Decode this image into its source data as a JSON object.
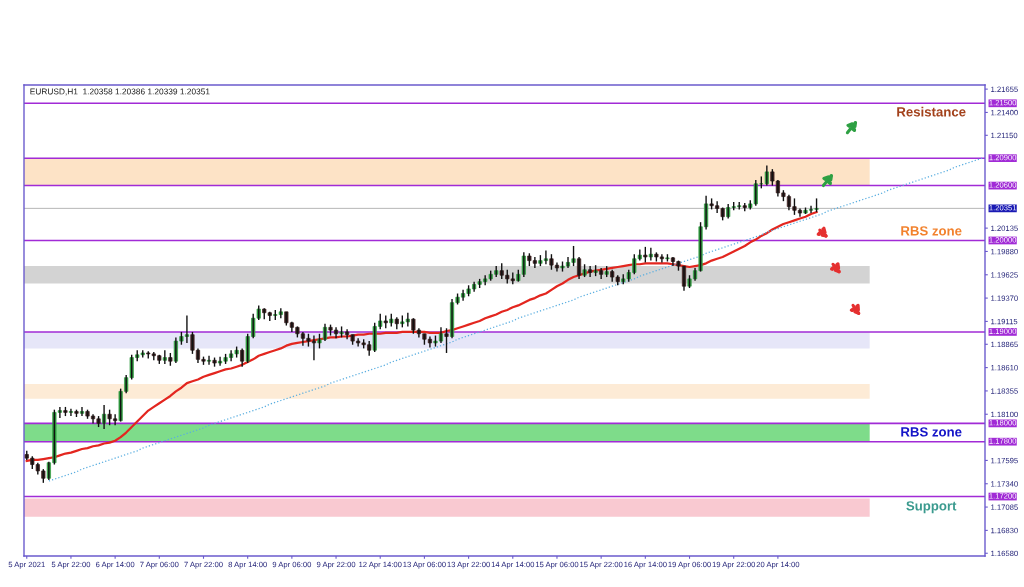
{
  "chart_data": {
    "type": "candlestick",
    "title": "EURUSD,H1  1.20358 1.20386 1.20339 1.20351",
    "categories": [
      "5 Apr 2021",
      null,
      null,
      null,
      null,
      null,
      null,
      null,
      "5 Apr 22:00",
      null,
      null,
      null,
      null,
      null,
      null,
      null,
      "6 Apr 14:00",
      null,
      null,
      null,
      null,
      null,
      null,
      null,
      "7 Apr 06:00",
      null,
      null,
      null,
      null,
      null,
      null,
      null,
      "7 Apr 22:00",
      null,
      null,
      null,
      null,
      null,
      null,
      null,
      "8 Apr 14:00",
      null,
      null,
      null,
      null,
      null,
      null,
      null,
      "9 Apr 06:00",
      null,
      null,
      null,
      null,
      null,
      null,
      null,
      "9 Apr 22:00",
      null,
      null,
      null,
      null,
      null,
      null,
      null,
      "12 Apr 14:00",
      null,
      null,
      null,
      null,
      null,
      null,
      null,
      "13 Apr 06:00",
      null,
      null,
      null,
      null,
      null,
      null,
      null,
      "13 Apr 22:00",
      null,
      null,
      null,
      null,
      null,
      null,
      null,
      "14 Apr 14:00",
      null,
      null,
      null,
      null,
      null,
      null,
      null,
      "15 Apr 06:00",
      null,
      null,
      null,
      null,
      null,
      null,
      null,
      "15 Apr 22:00",
      null,
      null,
      null,
      null,
      null,
      null,
      null,
      "16 Apr 14:00",
      null,
      null,
      null,
      null,
      null,
      null,
      null,
      "19 Apr 06:00",
      null,
      null,
      null,
      null,
      null,
      null,
      null,
      "19 Apr 22:00",
      null,
      null,
      null,
      null,
      null,
      null,
      null,
      "20 Apr 14:00",
      null,
      null,
      null,
      null,
      null,
      null,
      null,
      null,
      null,
      null,
      null,
      null,
      null,
      null,
      null,
      null,
      null,
      null,
      null,
      null,
      null,
      null,
      null,
      null,
      null,
      null,
      null,
      null,
      null,
      null,
      null,
      null,
      null,
      null,
      null,
      null,
      null
    ],
    "ohlc": [
      [
        1.1766,
        1.177,
        1.176,
        1.1762
      ],
      [
        1.1762,
        1.1764,
        1.175,
        1.1755
      ],
      [
        1.1755,
        1.1757,
        1.1744,
        1.1748
      ],
      [
        1.1748,
        1.175,
        1.1735,
        1.174
      ],
      [
        1.174,
        1.1758,
        1.1738,
        1.1757
      ],
      [
        1.1757,
        1.1815,
        1.1755,
        1.1812
      ],
      [
        1.1812,
        1.1818,
        1.1806,
        1.1814
      ],
      [
        1.1814,
        1.1818,
        1.1808,
        1.1812
      ],
      [
        1.1812,
        1.1816,
        1.1808,
        1.1813
      ],
      [
        1.1813,
        1.1815,
        1.1807,
        1.1811
      ],
      [
        1.1811,
        1.1818,
        1.1808,
        1.1813
      ],
      [
        1.1813,
        1.1815,
        1.1805,
        1.1808
      ],
      [
        1.1808,
        1.181,
        1.18,
        1.1805
      ],
      [
        1.1805,
        1.1808,
        1.1796,
        1.18
      ],
      [
        1.18,
        1.182,
        1.1794,
        1.181
      ],
      [
        1.181,
        1.1815,
        1.1798,
        1.1805
      ],
      [
        1.1805,
        1.181,
        1.1798,
        1.1803
      ],
      [
        1.1803,
        1.1838,
        1.1802,
        1.1835
      ],
      [
        1.1835,
        1.1853,
        1.1833,
        1.185
      ],
      [
        1.185,
        1.1875,
        1.1848,
        1.1872
      ],
      [
        1.1872,
        1.188,
        1.1868,
        1.1875
      ],
      [
        1.1875,
        1.188,
        1.1872,
        1.1877
      ],
      [
        1.1877,
        1.1879,
        1.1871,
        1.1876
      ],
      [
        1.1876,
        1.1878,
        1.1869,
        1.1874
      ],
      [
        1.1874,
        1.1875,
        1.1865,
        1.1869
      ],
      [
        1.1869,
        1.188,
        1.1865,
        1.1872
      ],
      [
        1.1872,
        1.1877,
        1.1863,
        1.1868
      ],
      [
        1.1868,
        1.1894,
        1.1866,
        1.189
      ],
      [
        1.189,
        1.19,
        1.1886,
        1.1895
      ],
      [
        1.1895,
        1.1918,
        1.1888,
        1.1897
      ],
      [
        1.1897,
        1.19,
        1.1876,
        1.188
      ],
      [
        1.188,
        1.1882,
        1.1866,
        1.187
      ],
      [
        1.187,
        1.1873,
        1.1864,
        1.1868
      ],
      [
        1.1868,
        1.1874,
        1.1864,
        1.1869
      ],
      [
        1.1869,
        1.1872,
        1.1862,
        1.1866
      ],
      [
        1.1866,
        1.1873,
        1.1863,
        1.1868
      ],
      [
        1.1868,
        1.1876,
        1.1865,
        1.1872
      ],
      [
        1.1872,
        1.188,
        1.1868,
        1.1876
      ],
      [
        1.1876,
        1.1884,
        1.1872,
        1.188
      ],
      [
        1.188,
        1.1882,
        1.1862,
        1.1868
      ],
      [
        1.1868,
        1.1898,
        1.1866,
        1.1895
      ],
      [
        1.1895,
        1.192,
        1.1893,
        1.1915
      ],
      [
        1.1915,
        1.1929,
        1.1913,
        1.1925
      ],
      [
        1.1925,
        1.1926,
        1.1914,
        1.1921
      ],
      [
        1.1921,
        1.1922,
        1.1912,
        1.1918
      ],
      [
        1.1918,
        1.1924,
        1.1913,
        1.1919
      ],
      [
        1.1919,
        1.1926,
        1.1915,
        1.1922
      ],
      [
        1.1922,
        1.1922,
        1.1907,
        1.191
      ],
      [
        1.191,
        1.1911,
        1.19,
        1.1905
      ],
      [
        1.1905,
        1.1906,
        1.1894,
        1.1898
      ],
      [
        1.1898,
        1.19,
        1.1885,
        1.1893
      ],
      [
        1.1893,
        1.1898,
        1.1884,
        1.189
      ],
      [
        1.189,
        1.1896,
        1.1869,
        1.1888
      ],
      [
        1.1888,
        1.1898,
        1.1882,
        1.1892
      ],
      [
        1.1892,
        1.1909,
        1.189,
        1.1905
      ],
      [
        1.1905,
        1.1908,
        1.1896,
        1.1902
      ],
      [
        1.1902,
        1.1905,
        1.1893,
        1.1898
      ],
      [
        1.1898,
        1.1906,
        1.1894,
        1.19
      ],
      [
        1.19,
        1.1903,
        1.1892,
        1.1897
      ],
      [
        1.1897,
        1.1897,
        1.1886,
        1.189
      ],
      [
        1.189,
        1.1893,
        1.1884,
        1.1888
      ],
      [
        1.1888,
        1.1892,
        1.1882,
        1.1886
      ],
      [
        1.1886,
        1.189,
        1.1874,
        1.188
      ],
      [
        1.188,
        1.191,
        1.1878,
        1.1906
      ],
      [
        1.1906,
        1.192,
        1.1903,
        1.1912
      ],
      [
        1.1912,
        1.1918,
        1.1904,
        1.191
      ],
      [
        1.191,
        1.192,
        1.1906,
        1.1914
      ],
      [
        1.1914,
        1.1916,
        1.1903,
        1.1909
      ],
      [
        1.1909,
        1.1918,
        1.1905,
        1.1911
      ],
      [
        1.1911,
        1.1921,
        1.1906,
        1.1914
      ],
      [
        1.1914,
        1.1915,
        1.1898,
        1.1902
      ],
      [
        1.1902,
        1.1904,
        1.1894,
        1.1898
      ],
      [
        1.1898,
        1.1898,
        1.1886,
        1.1892
      ],
      [
        1.1892,
        1.1895,
        1.1883,
        1.1888
      ],
      [
        1.1888,
        1.1896,
        1.1884,
        1.189
      ],
      [
        1.189,
        1.1905,
        1.1888,
        1.1898
      ],
      [
        1.1898,
        1.1904,
        1.1877,
        1.1895
      ],
      [
        1.1895,
        1.1936,
        1.1893,
        1.1932
      ],
      [
        1.1932,
        1.1942,
        1.193,
        1.1938
      ],
      [
        1.1938,
        1.1946,
        1.1934,
        1.1942
      ],
      [
        1.1942,
        1.1951,
        1.1939,
        1.1947
      ],
      [
        1.1947,
        1.1955,
        1.1944,
        1.1952
      ],
      [
        1.1952,
        1.1958,
        1.1948,
        1.1955
      ],
      [
        1.1955,
        1.1962,
        1.1951,
        1.1958
      ],
      [
        1.1958,
        1.1967,
        1.1956,
        1.1963
      ],
      [
        1.1963,
        1.1972,
        1.196,
        1.1967
      ],
      [
        1.1967,
        1.1975,
        1.1958,
        1.1962
      ],
      [
        1.1962,
        1.1968,
        1.1953,
        1.1958
      ],
      [
        1.1958,
        1.1965,
        1.1952,
        1.1956
      ],
      [
        1.1956,
        1.1968,
        1.1955,
        1.1963
      ],
      [
        1.1963,
        1.1987,
        1.196,
        1.1983
      ],
      [
        1.1983,
        1.1986,
        1.1972,
        1.1978
      ],
      [
        1.1978,
        1.1982,
        1.197,
        1.1975
      ],
      [
        1.1975,
        1.1984,
        1.1972,
        1.1978
      ],
      [
        1.1978,
        1.1989,
        1.1974,
        1.198
      ],
      [
        1.198,
        1.1985,
        1.1968,
        1.1973
      ],
      [
        1.1973,
        1.1976,
        1.1966,
        1.197
      ],
      [
        1.197,
        1.1977,
        1.1966,
        1.1972
      ],
      [
        1.1972,
        1.1982,
        1.197,
        1.1976
      ],
      [
        1.1976,
        1.1994,
        1.1972,
        1.198
      ],
      [
        1.198,
        1.1982,
        1.1958,
        1.1962
      ],
      [
        1.1962,
        1.1974,
        1.196,
        1.1968
      ],
      [
        1.1968,
        1.1972,
        1.196,
        1.1965
      ],
      [
        1.1965,
        1.1973,
        1.1961,
        1.1967
      ],
      [
        1.1967,
        1.197,
        1.1958,
        1.1963
      ],
      [
        1.1963,
        1.1972,
        1.196,
        1.1966
      ],
      [
        1.1966,
        1.1968,
        1.1955,
        1.196
      ],
      [
        1.196,
        1.1962,
        1.1951,
        1.1955
      ],
      [
        1.1955,
        1.1963,
        1.1952,
        1.1958
      ],
      [
        1.1958,
        1.1968,
        1.1955,
        1.1965
      ],
      [
        1.1965,
        1.1985,
        1.1963,
        1.198
      ],
      [
        1.198,
        1.199,
        1.1978,
        1.1984
      ],
      [
        1.1984,
        1.1993,
        1.1976,
        1.1982
      ],
      [
        1.1982,
        1.1992,
        1.1978,
        1.1985
      ],
      [
        1.1985,
        1.1987,
        1.1977,
        1.1982
      ],
      [
        1.1982,
        1.1985,
        1.1976,
        1.198
      ],
      [
        1.198,
        1.1985,
        1.1977,
        1.1981
      ],
      [
        1.1981,
        1.1982,
        1.1972,
        1.1977
      ],
      [
        1.1977,
        1.1978,
        1.1967,
        1.1972
      ],
      [
        1.1972,
        1.1972,
        1.1945,
        1.195
      ],
      [
        1.195,
        1.1962,
        1.1948,
        1.1958
      ],
      [
        1.1958,
        1.197,
        1.1956,
        1.1967
      ],
      [
        1.1967,
        1.202,
        1.1966,
        1.2015
      ],
      [
        1.2015,
        1.2049,
        1.2012,
        1.204
      ],
      [
        1.204,
        1.2046,
        1.2034,
        1.2038
      ],
      [
        1.2038,
        1.2043,
        1.203,
        1.2035
      ],
      [
        1.2035,
        1.2036,
        1.2022,
        1.2026
      ],
      [
        1.2026,
        1.204,
        1.2024,
        1.2036
      ],
      [
        1.2036,
        1.2042,
        1.2033,
        1.2037
      ],
      [
        1.2037,
        1.2042,
        1.2034,
        1.2038
      ],
      [
        1.2038,
        1.2041,
        1.2032,
        1.2036
      ],
      [
        1.2036,
        1.2044,
        1.2034,
        1.204
      ],
      [
        1.204,
        1.2066,
        1.2038,
        1.2062
      ],
      [
        1.2062,
        1.207,
        1.2057,
        1.2062
      ],
      [
        1.2062,
        1.2082,
        1.206,
        1.2075
      ],
      [
        1.2075,
        1.2078,
        1.206,
        1.2065
      ],
      [
        1.2065,
        1.2066,
        1.2048,
        1.2052
      ],
      [
        1.2052,
        1.2055,
        1.2043,
        1.2048
      ],
      [
        1.2048,
        1.205,
        1.2033,
        1.2037
      ],
      [
        1.2037,
        1.2046,
        1.2028,
        1.2033
      ],
      [
        1.2033,
        1.2035,
        1.2026,
        1.203
      ],
      [
        1.203,
        1.2036,
        1.2029,
        1.2033
      ],
      [
        1.2033,
        1.2038,
        1.203,
        1.2034
      ],
      [
        1.2034,
        1.2046,
        1.2031,
        1.2035
      ],
      null,
      null,
      null,
      null,
      null,
      null,
      null,
      null,
      null,
      null,
      null,
      null,
      null,
      null,
      null,
      null,
      null,
      null,
      null,
      null,
      null,
      null,
      null,
      null,
      null,
      null,
      null,
      null,
      null,
      null
    ],
    "series": [
      {
        "type": "line",
        "color": "#e3261f",
        "values": [
          1.1759,
          1.176,
          1.176,
          1.1761,
          1.1762,
          1.1763,
          1.1765,
          1.1767,
          1.1768,
          1.177,
          1.1772,
          1.1773,
          1.1775,
          1.1776,
          1.1778,
          1.1779,
          1.1781,
          1.1785,
          1.179,
          1.1796,
          1.1802,
          1.1808,
          1.1814,
          1.1818,
          1.1822,
          1.1826,
          1.183,
          1.1835,
          1.1839,
          1.1844,
          1.1846,
          1.1848,
          1.1851,
          1.1853,
          1.1855,
          1.1857,
          1.1859,
          1.186,
          1.1862,
          1.1864,
          1.1867,
          1.187,
          1.1874,
          1.1876,
          1.1878,
          1.188,
          1.1882,
          1.1885,
          1.1887,
          1.1888,
          1.1889,
          1.189,
          1.1891,
          1.1892,
          1.1893,
          1.1894,
          1.1894,
          1.1895,
          1.1895,
          1.1896,
          1.1897,
          1.1897,
          1.1898,
          1.1898,
          1.1898,
          1.1899,
          1.1899,
          1.1899,
          1.19,
          1.19,
          1.19,
          1.19,
          1.19,
          1.1899,
          1.1899,
          1.1899,
          1.1901,
          1.1902,
          1.1904,
          1.1906,
          1.1908,
          1.191,
          1.1912,
          1.1915,
          1.1917,
          1.1919,
          1.1922,
          1.1924,
          1.1927,
          1.1929,
          1.1932,
          1.1935,
          1.1937,
          1.194,
          1.1942,
          1.1946,
          1.195,
          1.1953,
          1.1957,
          1.196,
          1.1962,
          1.1964,
          1.1966,
          1.1967,
          1.1968,
          1.1969,
          1.197,
          1.1971,
          1.1972,
          1.1973,
          1.1974,
          1.1974,
          1.1975,
          1.1975,
          1.1975,
          1.1975,
          1.1975,
          1.1974,
          1.1973,
          1.1972,
          1.1971,
          1.1972,
          1.1973,
          1.1975,
          1.1978,
          1.198,
          1.1982,
          1.1985,
          1.1988,
          1.1991,
          1.1994,
          1.1998,
          1.2001,
          1.2005,
          1.2008,
          1.2012,
          1.2015,
          1.2018,
          1.202,
          1.2022,
          1.2024,
          1.2026,
          1.2029,
          1.2031,
          null,
          null,
          null,
          null,
          null,
          null,
          null,
          null,
          null,
          null,
          null,
          null,
          null,
          null,
          null,
          null,
          null,
          null,
          null,
          null,
          null,
          null,
          null,
          null,
          null,
          null,
          null,
          null,
          null,
          null
        ]
      },
      {
        "type": "line",
        "color": "#5aaee0",
        "line_style": "dotted",
        "values": [
          null,
          null,
          null,
          null,
          1.1737,
          1.1739,
          1.1741,
          1.1743,
          1.1745,
          1.1747,
          1.175,
          1.1752,
          1.1754,
          1.1756,
          1.1758,
          1.176,
          1.1762,
          1.1764,
          1.1766,
          1.1768,
          1.177,
          1.1773,
          1.1775,
          1.1777,
          1.1779,
          1.1781,
          1.1783,
          1.1785,
          1.1787,
          1.1789,
          1.1791,
          1.1793,
          1.1795,
          1.1798,
          1.18,
          1.1802,
          1.1804,
          1.1806,
          1.1808,
          1.181,
          1.1812,
          1.1814,
          1.1816,
          1.1818,
          1.1821,
          1.1823,
          1.1825,
          1.1827,
          1.1829,
          1.1831,
          1.1833,
          1.1835,
          1.1837,
          1.1839,
          1.1841,
          1.1844,
          1.1846,
          1.1848,
          1.185,
          1.1852,
          1.1854,
          1.1856,
          1.1858,
          1.186,
          1.1862,
          1.1864,
          1.1867,
          1.1869,
          1.1871,
          1.1873,
          1.1875,
          1.1877,
          1.1879,
          1.1881,
          1.1883,
          1.1885,
          1.1887,
          1.1889,
          1.1892,
          1.1894,
          1.1896,
          1.1898,
          1.19,
          1.1902,
          1.1904,
          1.1906,
          1.1908,
          1.191,
          1.1912,
          1.1915,
          1.1917,
          1.1919,
          1.1921,
          1.1923,
          1.1925,
          1.1927,
          1.1929,
          1.1931,
          1.1933,
          1.1935,
          1.1938,
          1.194,
          1.1942,
          1.1944,
          1.1946,
          1.1948,
          1.195,
          1.1952,
          1.1954,
          1.1956,
          1.1958,
          1.1961,
          1.1963,
          1.1965,
          1.1967,
          1.1969,
          1.1971,
          1.1973,
          1.1975,
          1.1977,
          1.1979,
          1.1981,
          1.1983,
          1.1986,
          1.1988,
          1.199,
          1.1992,
          1.1994,
          1.1996,
          1.1998,
          1.2,
          1.2002,
          1.2004,
          1.2006,
          1.2009,
          1.2011,
          1.2013,
          1.2015,
          1.2017,
          1.2019,
          1.2021,
          1.2023,
          1.2025,
          1.2027,
          1.2029,
          1.2032,
          1.2034,
          1.2036,
          1.2038,
          1.204,
          1.2042,
          1.2044,
          1.2046,
          1.2048,
          1.205,
          1.2052,
          1.2055,
          1.2057,
          1.2059,
          1.2061,
          1.2063,
          1.2065,
          1.2067,
          1.2069,
          1.2071,
          1.2073,
          1.2075,
          1.2077,
          1.208,
          1.2082,
          1.2084,
          1.2086,
          1.2088,
          1.209
        ]
      }
    ],
    "ylim": [
      1.1655,
      1.217
    ],
    "yticks": [
      1.21655,
      {
        "value": 1.214,
        "label": "1.21400"
      },
      {
        "value": 1.2115,
        "label": "1.21150"
      },
      1.20135,
      {
        "value": 1.1988,
        "label": "1.19880"
      },
      1.19625,
      {
        "value": 1.1937,
        "label": "1.19370"
      },
      1.19115,
      1.18865,
      {
        "value": 1.1861,
        "label": "1.18610"
      },
      1.18355,
      {
        "value": 1.181,
        "label": "1.18100"
      },
      1.17595,
      {
        "value": 1.1734,
        "label": "1.17340"
      },
      1.17085,
      {
        "value": 1.1683,
        "label": "1.16830"
      },
      {
        "value": 1.1658,
        "label": "1.16580"
      }
    ],
    "ref_lines": [
      {
        "axis": "y",
        "value": 1.215,
        "label": "1.21500",
        "color": "#a12bd6"
      },
      {
        "axis": "y",
        "value": 1.209,
        "label": "1.20900",
        "color": "#a12bd6"
      },
      {
        "axis": "y",
        "value": 1.206,
        "label": "1.20600",
        "color": "#a12bd6"
      },
      {
        "axis": "y",
        "value": 1.20351,
        "label": "1.20351",
        "color": "#b4b4b4"
      },
      {
        "axis": "y",
        "value": 1.2,
        "label": "1.20000",
        "color": "#a12bd6"
      },
      {
        "axis": "y",
        "value": 1.19,
        "label": "1.19000",
        "color": "#a12bd6"
      },
      {
        "axis": "y",
        "value": 1.18,
        "label": "1.18000",
        "color": "#a12bd6"
      },
      {
        "axis": "y",
        "value": 1.178,
        "label": "1.17800",
        "color": "#a12bd6"
      },
      {
        "axis": "y",
        "value": 1.172,
        "label": "1.17200",
        "color": "#a12bd6"
      }
    ],
    "bands": [
      {
        "axis": "y",
        "from": 1.206,
        "to": 1.209,
        "color": "#fde3c6"
      },
      {
        "axis": "y",
        "from": 1.1953,
        "to": 1.1972,
        "color": "#d3d3d3"
      },
      {
        "axis": "y",
        "from": 1.1882,
        "to": 1.19,
        "color": "#e6e6f8"
      },
      {
        "axis": "y",
        "from": 1.1827,
        "to": 1.1843,
        "color": "#fdebd6"
      },
      {
        "axis": "y",
        "from": 1.178,
        "to": 1.18,
        "color": "#7edc8a"
      },
      {
        "axis": "y",
        "from": 1.1698,
        "to": 1.1718,
        "color": "#f9c9d1"
      }
    ],
    "annotations": [
      "Resistance",
      "RBS zone",
      "RBS zone",
      "Support"
    ]
  }
}
